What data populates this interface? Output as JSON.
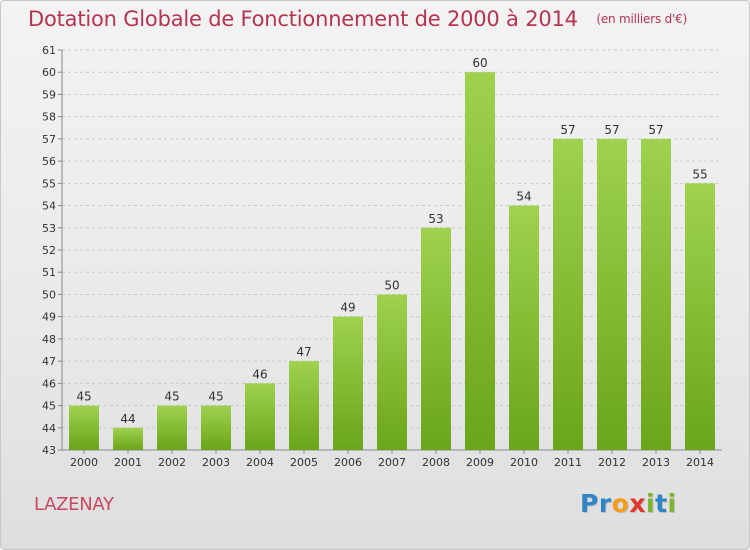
{
  "header": {
    "title": "Dotation Globale de Fonctionnement de 2000 à 2014",
    "unit": "(en milliers d'€)"
  },
  "footer": {
    "place": "LAZENAY",
    "logo_letters": [
      {
        "ch": "P",
        "color": "#2f86c6"
      },
      {
        "ch": "r",
        "color": "#2f86c6"
      },
      {
        "ch": "o",
        "color": "#f39c1f"
      },
      {
        "ch": "x",
        "color": "#e0362c"
      },
      {
        "ch": "i",
        "color": "#7bb52f"
      },
      {
        "ch": "t",
        "color": "#2f86c6"
      },
      {
        "ch": "i",
        "color": "#7bb52f"
      }
    ]
  },
  "colors": {
    "bar_top": "#9fd24e",
    "bar_bottom": "#6aa51a",
    "title": "#b5344f",
    "text": "#333333"
  },
  "chart_data": {
    "type": "bar",
    "title": "Dotation Globale de Fonctionnement de 2000 à 2014",
    "subtitle": "(en milliers d'€)",
    "categories": [
      "2000",
      "2001",
      "2002",
      "2003",
      "2004",
      "2005",
      "2006",
      "2007",
      "2008",
      "2009",
      "2010",
      "2011",
      "2012",
      "2013",
      "2014"
    ],
    "values": [
      45,
      44,
      45,
      45,
      46,
      47,
      49,
      50,
      53,
      60,
      54,
      57,
      57,
      57,
      55
    ],
    "ylim": [
      43,
      61
    ],
    "yticks": [
      43,
      44,
      45,
      46,
      47,
      48,
      49,
      50,
      51,
      52,
      53,
      54,
      55,
      56,
      57,
      58,
      59,
      60,
      61
    ],
    "xlabel": "",
    "ylabel": "",
    "grid": true,
    "data_labels": true
  }
}
